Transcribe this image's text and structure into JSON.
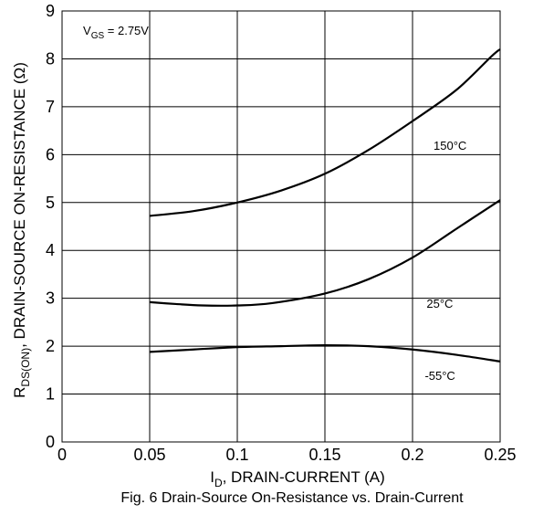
{
  "chart_data": {
    "type": "line",
    "title": "",
    "caption": "Fig. 6  Drain-Source On-Resistance vs. Drain-Current",
    "xlabel": {
      "main": "I",
      "sub": "D",
      "rest": ", DRAIN-CURRENT (A)"
    },
    "ylabel": {
      "main": "R",
      "sub": "DS(ON)",
      "rest": ", DRAIN-SOURCE ON-RESISTANCE (Ω)"
    },
    "xlim": [
      0,
      0.25
    ],
    "ylim": [
      0,
      9
    ],
    "grid": true,
    "x_ticks": [
      {
        "value": 0,
        "label": "0"
      },
      {
        "value": 0.05,
        "label": "0.05"
      },
      {
        "value": 0.1,
        "label": "0.1"
      },
      {
        "value": 0.15,
        "label": "0.15"
      },
      {
        "value": 0.2,
        "label": "0.2"
      },
      {
        "value": 0.25,
        "label": "0.25"
      }
    ],
    "y_ticks": [
      {
        "value": 0,
        "label": "0"
      },
      {
        "value": 1,
        "label": "1"
      },
      {
        "value": 2,
        "label": "2"
      },
      {
        "value": 3,
        "label": "3"
      },
      {
        "value": 4,
        "label": "4"
      },
      {
        "value": 5,
        "label": "5"
      },
      {
        "value": 6,
        "label": "6"
      },
      {
        "value": 7,
        "label": "7"
      },
      {
        "value": 8,
        "label": "8"
      },
      {
        "value": 9,
        "label": "9"
      }
    ],
    "condition": {
      "main": "V",
      "sub": "GS",
      "rest": " = 2.75V"
    },
    "series": [
      {
        "name": "150°C",
        "x": [
          0.05,
          0.075,
          0.1,
          0.125,
          0.15,
          0.175,
          0.2,
          0.225,
          0.245,
          0.25
        ],
        "y": [
          4.72,
          4.82,
          5.0,
          5.25,
          5.6,
          6.1,
          6.7,
          7.35,
          8.05,
          8.2
        ]
      },
      {
        "name": "25°C",
        "x": [
          0.05,
          0.065,
          0.08,
          0.1,
          0.12,
          0.15,
          0.175,
          0.2,
          0.225,
          0.25
        ],
        "y": [
          2.92,
          2.88,
          2.85,
          2.85,
          2.9,
          3.1,
          3.4,
          3.85,
          4.45,
          5.05
        ]
      },
      {
        "name": "-55°C",
        "x": [
          0.05,
          0.075,
          0.1,
          0.125,
          0.15,
          0.175,
          0.2,
          0.225,
          0.25
        ],
        "y": [
          1.88,
          1.93,
          1.98,
          2.0,
          2.02,
          2.0,
          1.93,
          1.82,
          1.68
        ]
      }
    ],
    "series_labels": [
      "150°C",
      "25°C",
      "-55°C"
    ]
  }
}
